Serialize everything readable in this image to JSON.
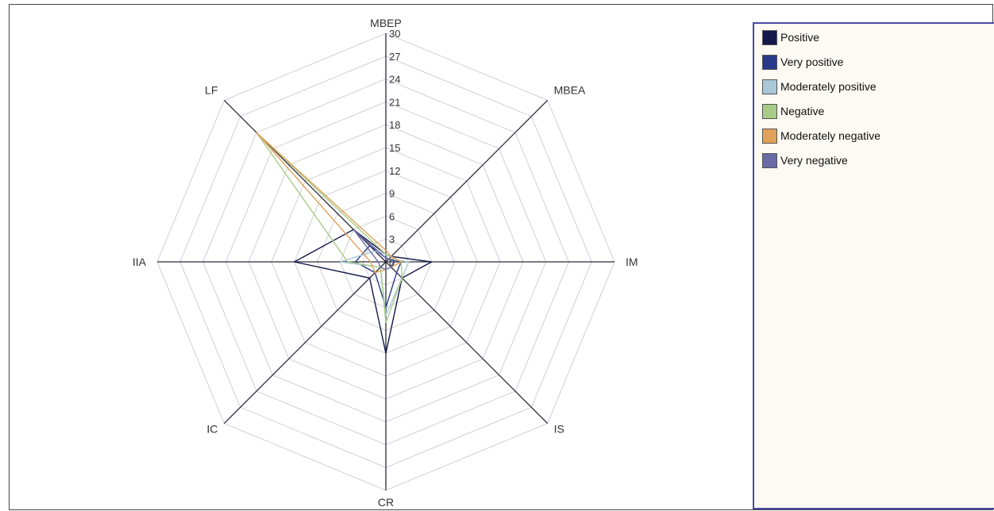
{
  "chart_data": {
    "type": "radar",
    "axes": [
      "MBEP",
      "MBEA",
      "IM",
      "IS",
      "CR",
      "IC",
      "IIA",
      "LF"
    ],
    "rlim": [
      0,
      30
    ],
    "ticks": [
      "0",
      "3",
      "6",
      "9",
      "12",
      "15",
      "18",
      "21",
      "24",
      "27",
      "30"
    ],
    "grid": true,
    "legend": "right",
    "series": [
      {
        "name": "Positive",
        "color": "#14184a",
        "values": [
          1,
          1,
          6,
          3,
          12,
          3,
          12,
          6
        ]
      },
      {
        "name": "Very positive",
        "color": "#2a3a8a",
        "values": [
          0.5,
          0.5,
          2,
          2,
          6,
          2,
          4,
          3
        ]
      },
      {
        "name": "Moderately positive",
        "color": "#a8c8d8",
        "values": [
          1,
          0.5,
          3,
          3,
          7,
          1,
          6,
          2
        ]
      },
      {
        "name": "Negative",
        "color": "#a8cc88",
        "values": [
          1,
          1,
          2,
          3,
          8,
          1,
          5,
          24
        ]
      },
      {
        "name": "Moderately negative",
        "color": "#e2a158",
        "values": [
          1.5,
          1,
          2,
          1,
          1,
          2,
          2,
          24
        ]
      },
      {
        "name": "Very negative",
        "color": "#6a6aa8",
        "values": [
          0.5,
          0.5,
          1,
          1,
          1,
          1,
          1,
          6
        ]
      }
    ]
  }
}
